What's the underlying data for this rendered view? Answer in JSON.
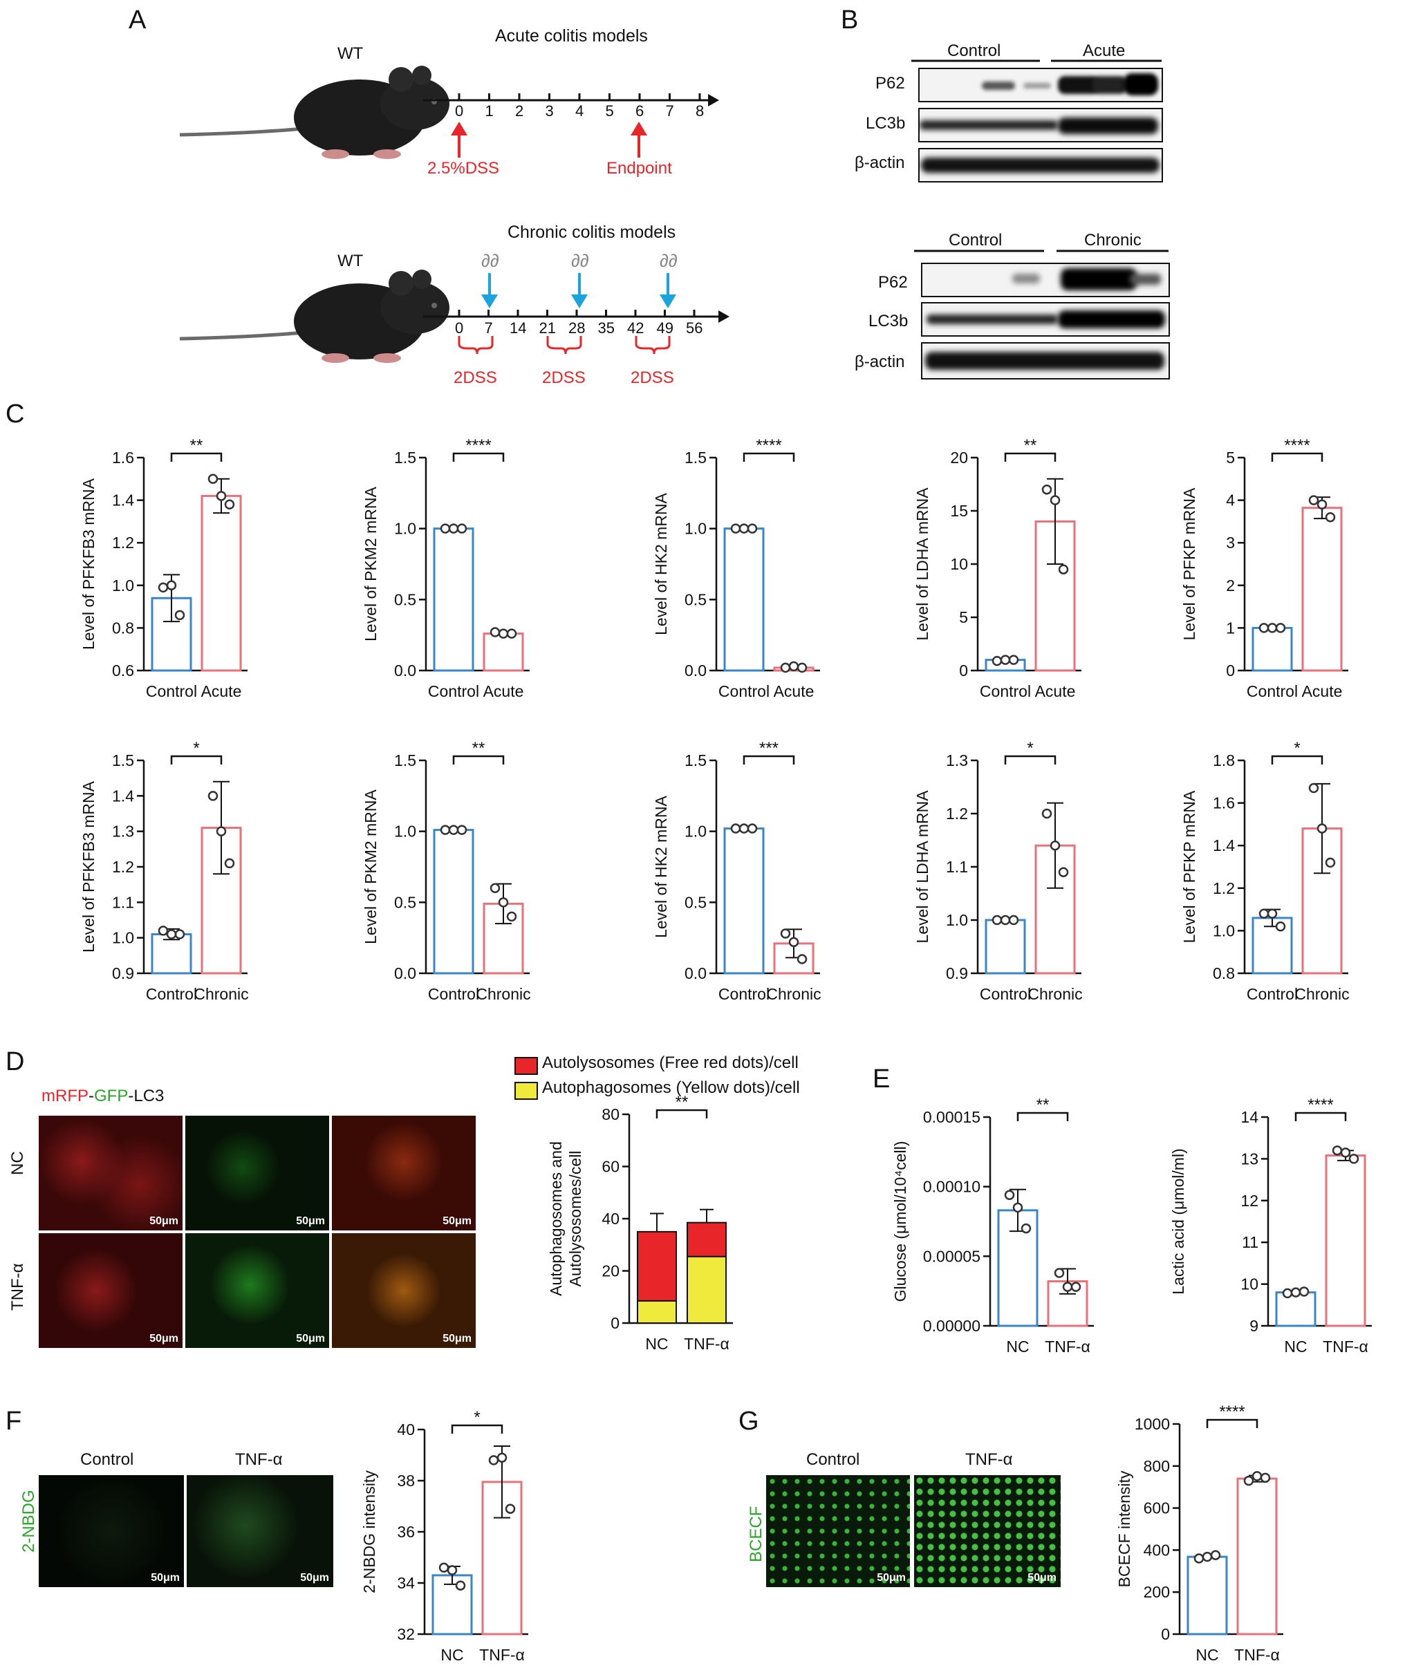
{
  "panels": {
    "A": "A",
    "B": "B",
    "C": "C",
    "D": "D",
    "E": "E",
    "F": "F",
    "G": "G"
  },
  "panelA": {
    "acute": {
      "title": "Acute colitis models",
      "mouse_label": "WT",
      "ticks": [
        "0",
        "1",
        "2",
        "3",
        "4",
        "5",
        "6",
        "7",
        "8"
      ],
      "start_label": "2.5%DSS",
      "end_label": "Endpoint"
    },
    "chronic": {
      "title": "Chronic colitis models",
      "mouse_label": "WT",
      "ticks": [
        "0",
        "7",
        "14",
        "21",
        "28",
        "35",
        "42",
        "49",
        "56"
      ],
      "dss_labels": [
        "2DSS",
        "2DSS",
        "2DSS"
      ],
      "arrow_icon": "∂∂"
    },
    "colors": {
      "red": "#e8262a",
      "blue": "#1aa3dc"
    }
  },
  "panelB": {
    "top": {
      "groups": [
        "Control",
        "Acute"
      ],
      "rows": [
        "P62",
        "LC3b",
        "β-actin"
      ]
    },
    "bottom": {
      "groups": [
        "Control",
        "Chronic"
      ],
      "rows": [
        "P62",
        "LC3b",
        "β-actin"
      ]
    }
  },
  "panelC": {
    "row1_categories": [
      "Control",
      "Acute"
    ],
    "row2_categories": [
      "Control",
      "Chronic"
    ]
  },
  "panelD": {
    "stain_parts": [
      "mRFP",
      "-",
      "GFP",
      "-",
      "LC3"
    ],
    "row_labels": [
      "NC",
      "TNF-α"
    ],
    "scale": "50μm",
    "legend": [
      "Autolysosomes (Free red dots)/cell",
      "Autophagosomes (Yellow dots)/cell"
    ]
  },
  "panelF": {
    "col_labels": [
      "Control",
      "TNF-α"
    ],
    "side_label": "2-NBDG",
    "scale": "50μm"
  },
  "panelG": {
    "col_labels": [
      "Control",
      "TNF-α"
    ],
    "side_label": "BCECF",
    "scale": "50μm"
  },
  "chart_data": [
    {
      "id": "c1",
      "type": "bar",
      "categories": [
        "Control",
        "Acute"
      ],
      "values": [
        0.94,
        1.42
      ],
      "errors": [
        0.11,
        0.08
      ],
      "points": [
        [
          0.99,
          1.0,
          0.86
        ],
        [
          1.5,
          1.42,
          1.38
        ]
      ],
      "ylabel": "Level of PFKFB3 mRNA",
      "ylim": [
        0.6,
        1.6
      ],
      "ticks": [
        "0.6",
        "0.8",
        "1.0",
        "1.2",
        "1.4",
        "1.6"
      ],
      "sig": "**"
    },
    {
      "id": "c2",
      "type": "bar",
      "categories": [
        "Control",
        "Acute"
      ],
      "values": [
        1.0,
        0.26
      ],
      "errors": [
        0.005,
        0.01
      ],
      "points": [
        [
          1.0,
          1.0,
          1.0
        ],
        [
          0.27,
          0.26,
          0.26
        ]
      ],
      "ylabel": "Level of PKM2 mRNA",
      "ylim": [
        0,
        1.5
      ],
      "ticks": [
        "0.0",
        "0.5",
        "1.0",
        "1.5"
      ],
      "sig": "****"
    },
    {
      "id": "c3",
      "type": "bar",
      "categories": [
        "Control",
        "Acute"
      ],
      "values": [
        1.0,
        0.02
      ],
      "errors": [
        0.005,
        0.005
      ],
      "points": [
        [
          1.0,
          1.0,
          1.0
        ],
        [
          0.02,
          0.03,
          0.02
        ]
      ],
      "ylabel": "Level of HK2 mRNA",
      "ylim": [
        0,
        1.5
      ],
      "ticks": [
        "0.0",
        "0.5",
        "1.0",
        "1.5"
      ],
      "sig": "****"
    },
    {
      "id": "c4",
      "type": "bar",
      "categories": [
        "Control",
        "Acute"
      ],
      "values": [
        1.0,
        14.0
      ],
      "errors": [
        0.1,
        4.0
      ],
      "points": [
        [
          0.9,
          1.0,
          1.0
        ],
        [
          17.0,
          16.0,
          9.5
        ]
      ],
      "ylabel": "Level of LDHA mRNA",
      "ylim": [
        0,
        20
      ],
      "ticks": [
        "0",
        "5",
        "10",
        "15",
        "20"
      ],
      "sig": "**"
    },
    {
      "id": "c5",
      "type": "bar",
      "categories": [
        "Control",
        "Acute"
      ],
      "values": [
        1.0,
        3.82
      ],
      "errors": [
        0.02,
        0.25
      ],
      "points": [
        [
          1.0,
          1.0,
          1.0
        ],
        [
          4.0,
          3.9,
          3.6
        ]
      ],
      "ylabel": "Level of PFKP mRNA",
      "ylim": [
        0,
        5
      ],
      "ticks": [
        "0",
        "1",
        "2",
        "3",
        "4",
        "5"
      ],
      "sig": "****"
    },
    {
      "id": "c6",
      "type": "bar",
      "categories": [
        "Control",
        "Chronic"
      ],
      "values": [
        1.01,
        1.31
      ],
      "errors": [
        0.015,
        0.13
      ],
      "points": [
        [
          1.02,
          1.01,
          1.01
        ],
        [
          1.4,
          1.3,
          1.21
        ]
      ],
      "ylabel": "Level of PFKFB3 mRNA",
      "ylim": [
        0.9,
        1.5
      ],
      "ticks": [
        "0.9",
        "1.0",
        "1.1",
        "1.2",
        "1.3",
        "1.4",
        "1.5"
      ],
      "sig": "*"
    },
    {
      "id": "c7",
      "type": "bar",
      "categories": [
        "Control",
        "Chronic"
      ],
      "values": [
        1.01,
        0.49
      ],
      "errors": [
        0.005,
        0.14
      ],
      "points": [
        [
          1.01,
          1.01,
          1.01
        ],
        [
          0.6,
          0.5,
          0.4
        ]
      ],
      "ylabel": "Level of PKM2 mRNA",
      "ylim": [
        0,
        1.5
      ],
      "ticks": [
        "0.0",
        "0.5",
        "1.0",
        "1.5"
      ],
      "sig": "**"
    },
    {
      "id": "c8",
      "type": "bar",
      "categories": [
        "Control",
        "Chronic"
      ],
      "values": [
        1.02,
        0.21
      ],
      "errors": [
        0.005,
        0.1
      ],
      "points": [
        [
          1.02,
          1.02,
          1.02
        ],
        [
          0.28,
          0.22,
          0.1
        ]
      ],
      "ylabel": "Level of HK2 mRNA",
      "ylim": [
        0,
        1.5
      ],
      "ticks": [
        "0.0",
        "0.5",
        "1.0",
        "1.5"
      ],
      "sig": "***"
    },
    {
      "id": "c9",
      "type": "bar",
      "categories": [
        "Control",
        "Chronic"
      ],
      "values": [
        1.0,
        1.14
      ],
      "errors": [
        0.003,
        0.08
      ],
      "points": [
        [
          1.0,
          1.0,
          1.0
        ],
        [
          1.2,
          1.14,
          1.09
        ]
      ],
      "ylabel": "Level of LDHA mRNA",
      "ylim": [
        0.9,
        1.3
      ],
      "ticks": [
        "0.9",
        "1.0",
        "1.1",
        "1.2",
        "1.3"
      ],
      "sig": "*"
    },
    {
      "id": "c10",
      "type": "bar",
      "categories": [
        "Control",
        "Chronic"
      ],
      "values": [
        1.06,
        1.48
      ],
      "errors": [
        0.04,
        0.21
      ],
      "points": [
        [
          1.08,
          1.08,
          1.02
        ],
        [
          1.67,
          1.48,
          1.32
        ]
      ],
      "ylabel": "Level of PFKP mRNA",
      "ylim": [
        0.8,
        1.8
      ],
      "ticks": [
        "0.8",
        "1.0",
        "1.2",
        "1.4",
        "1.6",
        "1.8"
      ],
      "sig": "*"
    },
    {
      "id": "d",
      "type": "bar",
      "stacked": true,
      "categories": [
        "NC",
        "TNF-α"
      ],
      "series": [
        {
          "name": "Autophagosomes (Yellow dots)/cell",
          "values": [
            8.5,
            25.5
          ],
          "errors": [
            1,
            4
          ]
        },
        {
          "name": "Autolysosomes (Free red dots)/cell",
          "values": [
            26.5,
            13
          ],
          "errors": [
            7,
            5
          ]
        }
      ],
      "ylabel": [
        "Autophagosomes and",
        "Autolysosomes/cell"
      ],
      "ylim": [
        0,
        80
      ],
      "ticks": [
        "0",
        "20",
        "40",
        "60",
        "80"
      ],
      "sig": "**",
      "colors": [
        "#f0ea3c",
        "#e8262a"
      ]
    },
    {
      "id": "e1",
      "type": "bar",
      "categories": [
        "NC",
        "TNF-α"
      ],
      "values": [
        8.3e-05,
        3.2e-05
      ],
      "errors": [
        1.5e-05,
        9e-06
      ],
      "points": [
        [
          9.4e-05,
          8.5e-05,
          7e-05
        ],
        [
          3.8e-05,
          2.8e-05,
          2.8e-05
        ]
      ],
      "ylabel": "Glucose (μmol/10⁴cell)",
      "ylim": [
        0,
        0.00015
      ],
      "ticks": [
        "0.00000",
        "0.00005",
        "0.00010",
        "0.00015"
      ],
      "sig": "**"
    },
    {
      "id": "e2",
      "type": "bar",
      "categories": [
        "NC",
        "TNF-α"
      ],
      "values": [
        9.8,
        13.08
      ],
      "errors": [
        0.03,
        0.12
      ],
      "points": [
        [
          9.78,
          9.8,
          9.82
        ],
        [
          13.2,
          13.15,
          13.0
        ]
      ],
      "ylabel": "Lactic acid (μmol/ml)",
      "ylim": [
        9,
        14
      ],
      "ticks": [
        "9",
        "10",
        "11",
        "12",
        "13",
        "14"
      ],
      "sig": "****"
    },
    {
      "id": "f",
      "type": "bar",
      "categories": [
        "NC",
        "TNF-α"
      ],
      "values": [
        34.3,
        37.95
      ],
      "errors": [
        0.35,
        1.4
      ],
      "points": [
        [
          34.6,
          34.5,
          33.9
        ],
        [
          38.8,
          38.9,
          36.9
        ]
      ],
      "ylabel": "2-NBDG intensity",
      "ylim": [
        32,
        40
      ],
      "ticks": [
        "32",
        "34",
        "36",
        "38",
        "40"
      ],
      "sig": "*"
    },
    {
      "id": "g",
      "type": "bar",
      "categories": [
        "NC",
        "TNF-α"
      ],
      "values": [
        368,
        740
      ],
      "errors": [
        5,
        15
      ],
      "points": [
        [
          360,
          368,
          376
        ],
        [
          730,
          752,
          744
        ]
      ],
      "ylabel": "BCECF intensity",
      "ylim": [
        0,
        1000
      ],
      "ticks": [
        "0",
        "200",
        "400",
        "600",
        "800",
        "1000"
      ],
      "sig": "****"
    }
  ]
}
